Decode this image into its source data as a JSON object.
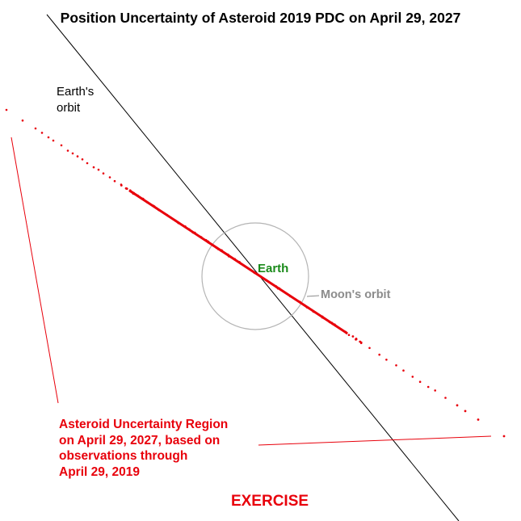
{
  "title": "Position Uncertainty of Asteroid 2019 PDC on April 29, 2027",
  "labels": {
    "earth_orbit_line1": "Earth's",
    "earth_orbit_line2": "orbit",
    "earth": "Earth",
    "moon_orbit": "Moon's orbit",
    "region_line1": "Asteroid Uncertainty Region",
    "region_line2": "on April 29, 2027, based on",
    "region_line3": "observations through",
    "region_line4": "April 29, 2019",
    "exercise": "EXERCISE"
  },
  "colors": {
    "asteroid_region": "#e8000b",
    "earth_orbit": "#000000",
    "moon_orbit": "#b4b4b4",
    "earth_label": "#1a8a1a",
    "moon_label": "#8c8c8c"
  }
}
